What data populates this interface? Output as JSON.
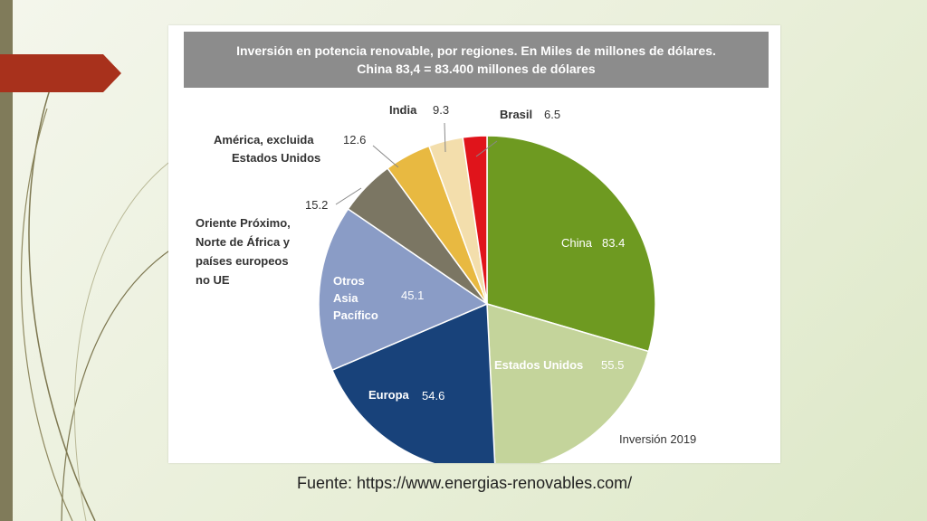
{
  "source_text": "Fuente: https://www.energias-renovables.com/",
  "colors": {
    "background": "#eef3e2",
    "accent_tab": "#a8311c",
    "left_bar": "#807b5a",
    "title_band": "#8c8c8c"
  },
  "chart_data": {
    "type": "pie",
    "title": "Inversión en potencia renovable, por regiones. En Miles de millones de dólares.",
    "subtitle": "China 83,4 = 83.400 millones de dólares",
    "footnote": "Inversión 2019",
    "slices": [
      {
        "label": "China",
        "value": 83.4,
        "value_text": "83.4",
        "color": "#6e9a21"
      },
      {
        "label": "Estados Unidos",
        "value": 55.5,
        "value_text": "55.5",
        "color": "#c4d49b"
      },
      {
        "label": "Europa",
        "value": 54.6,
        "value_text": "54.6",
        "color": "#18427a"
      },
      {
        "label": "Otros Asia Pacífico",
        "value": 45.1,
        "value_text": "45.1",
        "color": "#8a9cc6"
      },
      {
        "label": "Oriente Próximo, Norte de África y países europeos no UE",
        "value": 15.2,
        "value_text": "15.2",
        "color": "#7b7663"
      },
      {
        "label": "América, excluida Estados Unidos",
        "value": 12.6,
        "value_text": "12.6",
        "color": "#e8b941"
      },
      {
        "label": "India",
        "value": 9.3,
        "value_text": "9.3",
        "color": "#f3deac"
      },
      {
        "label": "Brasil",
        "value": 6.5,
        "value_text": "6.5",
        "color": "#e0141b"
      }
    ]
  }
}
